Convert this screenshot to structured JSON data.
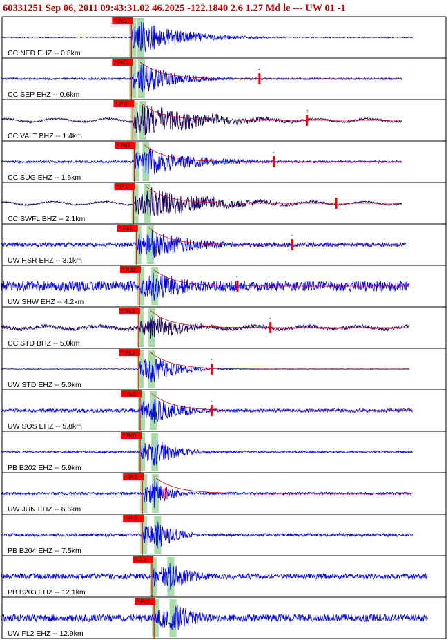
{
  "header": {
    "title": "60331251 Sep 06, 2011 09:43:31.02   46.2025 -122.1840  2.6 1.27 Md le --- UW 01  -1"
  },
  "chart_data": {
    "type": "line",
    "title": "60331251 Sep 06, 2011 09:43:31.02   46.2025 -122.1840  2.6 1.27 Md le --- UW 01  -1",
    "grid": false,
    "colors": {
      "trace_blue": "#0000ff",
      "trace_dark": "#1a0066",
      "pick_box": "#ff0000",
      "coda_line": "#d00000",
      "window_green": "#a8dca8",
      "frame": "#000000"
    },
    "traces": [
      {
        "label": "CC NED EHZ -- 0.3km",
        "pick": "Pc1",
        "pick_t": 0.5,
        "s_t": 1.6,
        "coda_t": null,
        "coda_mark": "",
        "color": "blue",
        "end_t": 39,
        "amp": 0.95,
        "noise": 0.03,
        "decay": 0.17
      },
      {
        "label": "CC SEP EHZ -- 0.6km",
        "pick": "Pd1",
        "pick_t": 0.5,
        "s_t": 1.7,
        "coda_t": 18.0,
        "coda_mark": "-",
        "color": "blue",
        "end_t": 37.5,
        "amp": 0.9,
        "noise": 0.05,
        "decay": 0.22
      },
      {
        "label": "CC VALT BHZ -- 1.4km",
        "pick": "P 0",
        "pick_t": 0.7,
        "s_t": 1.9,
        "coda_t": 24.5,
        "coda_mark": "+",
        "color": "dark",
        "end_t": 37.5,
        "amp": 0.9,
        "noise": 0.05,
        "decay": 0.12
      },
      {
        "label": "CC SUG EHZ -- 1.6km",
        "pick": "Pd1",
        "pick_t": 0.9,
        "s_t": 2.3,
        "coda_t": 20.0,
        "coda_mark": "-",
        "color": "blue",
        "end_t": 37.5,
        "amp": 0.85,
        "noise": 0.06,
        "decay": 0.15
      },
      {
        "label": "CC SWFL BHZ -- 2.1km",
        "pick": "P 1",
        "pick_t": 0.8,
        "s_t": 2.5,
        "coda_t": 28.5,
        "coda_mark": "-",
        "color": "dark",
        "end_t": 37.5,
        "amp": 0.9,
        "noise": 0.04,
        "decay": 0.12
      },
      {
        "label": "UW HSR EHZ -- 3.1km",
        "pick": "Pc1",
        "pick_t": 1.2,
        "s_t": 2.9,
        "coda_t": 22.5,
        "coda_mark": "-",
        "color": "blue",
        "end_t": 38,
        "amp": 0.85,
        "noise": 0.12,
        "decay": 0.16
      },
      {
        "label": "UW SHW EHZ -- 4.2km",
        "pick": "Pd2",
        "pick_t": 1.6,
        "s_t": 3.5,
        "coda_t": 15.0,
        "coda_mark": "-",
        "color": "blue",
        "end_t": 38.5,
        "amp": 0.85,
        "noise": 0.28,
        "decay": 0.18
      },
      {
        "label": "CC STD BHZ -- 5.0km",
        "pick": "Pc1",
        "pick_t": 1.5,
        "s_t": 3.1,
        "coda_t": 19.5,
        "coda_mark": "-",
        "color": "dark",
        "end_t": 38.5,
        "amp": 0.7,
        "noise": 0.1,
        "decay": 0.22
      },
      {
        "label": "UW STD EHZ -- 5.0km",
        "pick": "Pc1",
        "pick_t": 1.5,
        "s_t": 3.1,
        "coda_t": 11.5,
        "coda_mark": "-",
        "color": "blue",
        "end_t": 38.5,
        "amp": 0.85,
        "noise": 0.02,
        "decay": 0.3
      },
      {
        "label": "UW SOS EHZ -- 5.8km",
        "pick": "Pc1",
        "pick_t": 1.7,
        "s_t": 3.3,
        "coda_t": 11.5,
        "coda_mark": "-",
        "color": "blue",
        "end_t": 39,
        "amp": 0.8,
        "noise": 0.1,
        "decay": 0.25
      },
      {
        "label": "PB B202 EHZ -- 5.9km",
        "pick": "Pc0",
        "pick_t": 1.7,
        "s_t": 3.5,
        "coda_t": null,
        "coda_mark": "",
        "color": "blue",
        "end_t": 39,
        "amp": 0.8,
        "noise": 0.06,
        "decay": 0.3
      },
      {
        "label": "UW JUN EHZ -- 6.6km",
        "pick": "P 2",
        "pick_t": 2.0,
        "s_t": 3.6,
        "coda_t": 5.2,
        "coda_mark": "-",
        "color": "blue",
        "end_t": 39,
        "amp": 0.85,
        "noise": 0.07,
        "decay": 0.45
      },
      {
        "label": "PB B204 EHZ -- 7.5km",
        "pick": "P 3",
        "pick_t": 2.0,
        "s_t": 3.9,
        "coda_t": null,
        "coda_mark": "",
        "color": "blue",
        "end_t": 39,
        "amp": 0.8,
        "noise": 0.08,
        "decay": 0.35
      },
      {
        "label": "PB B203 EHZ -- 12.1km",
        "pick": "P 3",
        "pick_t": 3.3,
        "s_t": 5.7,
        "coda_t": null,
        "coda_mark": "",
        "color": "blue",
        "end_t": 41,
        "amp": 0.85,
        "noise": 0.15,
        "decay": 0.3
      },
      {
        "label": "UW FL2 EHZ -- 12.9km",
        "pick": "Pc2",
        "pick_t": 3.6,
        "s_t": 6.0,
        "coda_t": null,
        "coda_mark": "",
        "color": "blue",
        "end_t": 41,
        "amp": 0.85,
        "noise": 0.2,
        "decay": 0.25
      }
    ]
  }
}
